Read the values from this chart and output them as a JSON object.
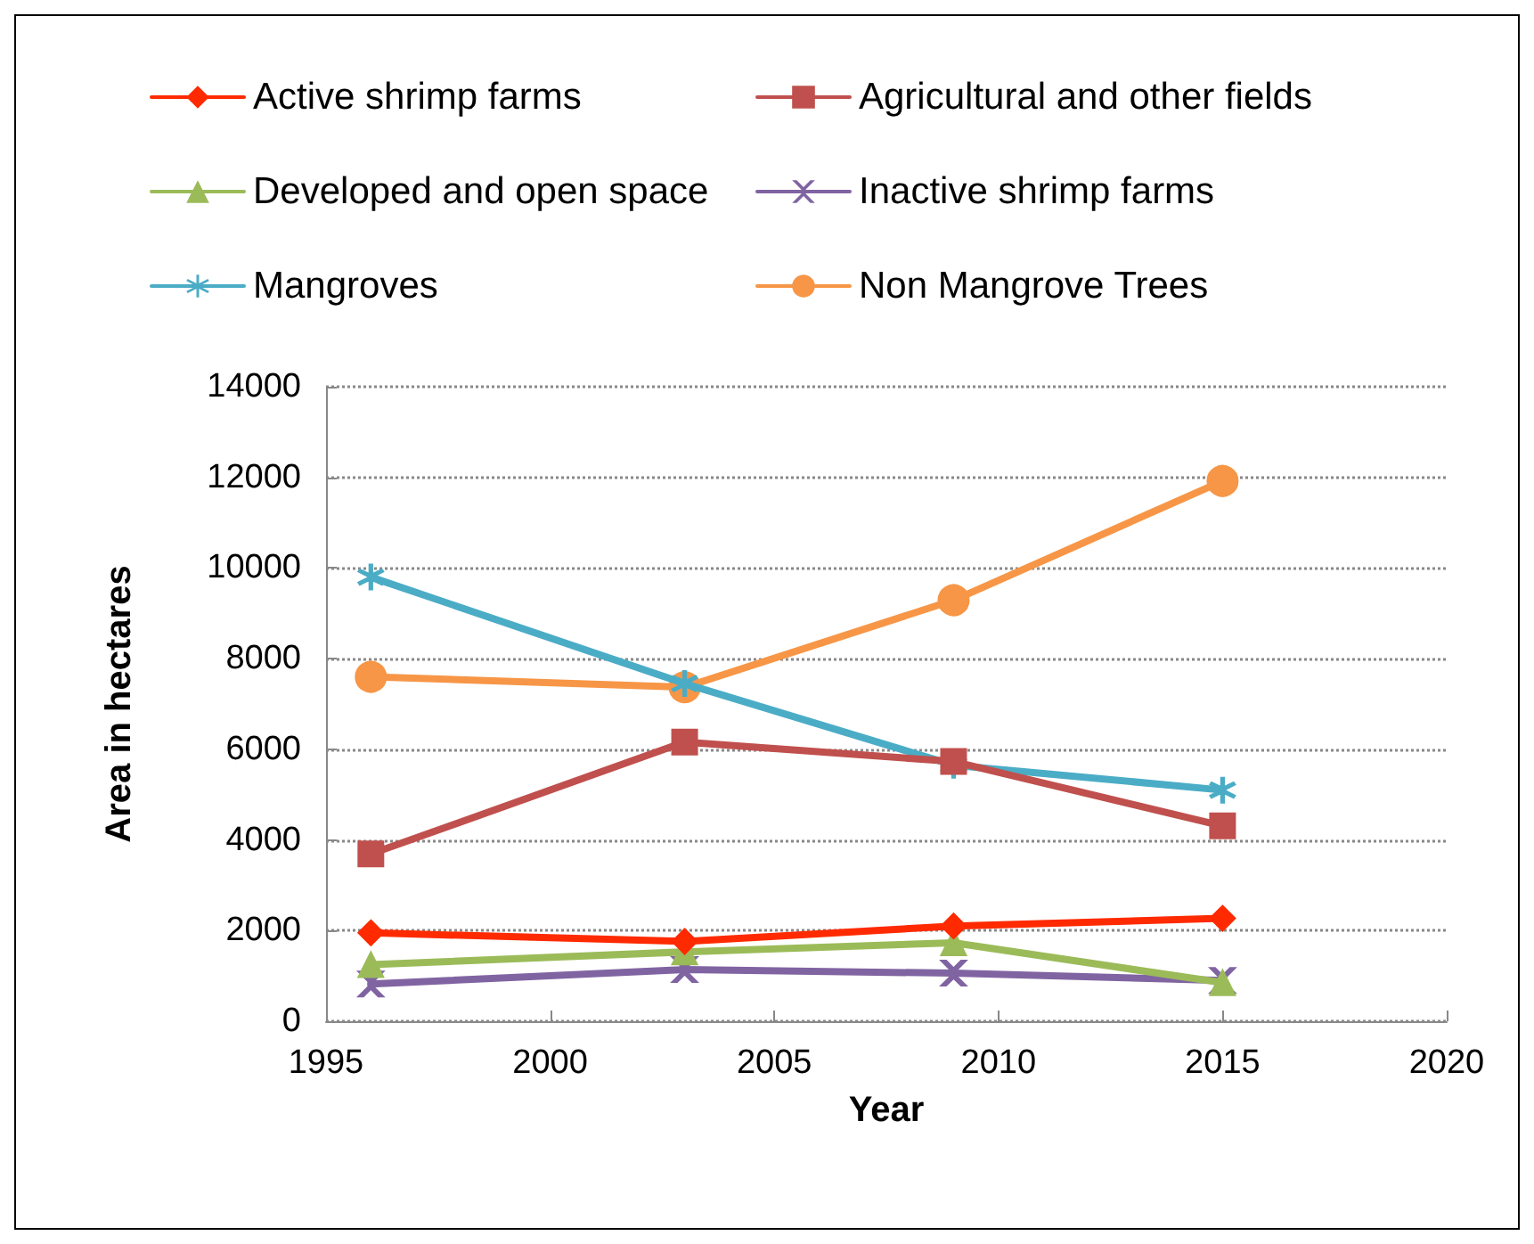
{
  "chart_data": {
    "type": "line",
    "xlabel": "Year",
    "ylabel": "Area in hectares",
    "x": [
      1996,
      2003,
      2009,
      2015
    ],
    "series": [
      {
        "name": "Active shrimp farms",
        "color": "#ff2a00",
        "marker": "diamond",
        "values": [
          1950,
          1760,
          2100,
          2270
        ]
      },
      {
        "name": "Agricultural and other fields",
        "color": "#c0504d",
        "marker": "square",
        "values": [
          3690,
          6160,
          5730,
          4310
        ]
      },
      {
        "name": "Developed and open space",
        "color": "#9bbb59",
        "marker": "triangle",
        "values": [
          1250,
          1530,
          1730,
          850
        ]
      },
      {
        "name": "Inactive shrimp farms",
        "color": "#8064a2",
        "marker": "cross",
        "values": [
          820,
          1140,
          1060,
          900
        ]
      },
      {
        "name": "Mangroves",
        "color": "#4bacc6",
        "marker": "star",
        "values": [
          9800,
          7450,
          5650,
          5100
        ]
      },
      {
        "name": "Non Mangrove Trees",
        "color": "#f79646",
        "marker": "circle",
        "values": [
          7600,
          7370,
          9290,
          11920
        ]
      }
    ],
    "xlim": [
      1995,
      2020
    ],
    "xticks": [
      1995,
      2000,
      2005,
      2010,
      2015,
      2020
    ],
    "ylim": [
      0,
      14000
    ],
    "yticks": [
      0,
      2000,
      4000,
      6000,
      8000,
      10000,
      12000,
      14000
    ],
    "grid": "y",
    "legend": "top"
  }
}
